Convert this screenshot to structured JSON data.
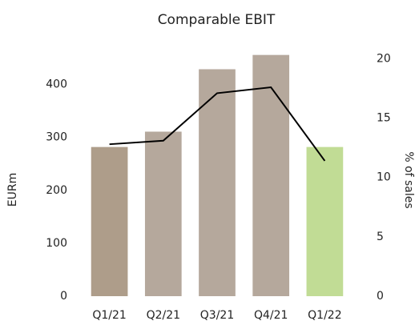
{
  "chart_data": {
    "type": "bar",
    "title": "Comparable EBIT",
    "categories": [
      "Q1/21",
      "Q2/21",
      "Q3/21",
      "Q4/21",
      "Q1/22"
    ],
    "series": [
      {
        "name": "EURm",
        "type": "bar",
        "colors": [
          "#ae9d8a",
          "#b5a89c",
          "#b5a89c",
          "#b5a89c",
          "#c1dc95"
        ],
        "values": [
          282,
          311,
          429,
          456,
          282
        ]
      },
      {
        "name": "% of sales",
        "type": "line",
        "axis": "y2",
        "color": "#000000",
        "values": [
          12.8,
          13.1,
          17.1,
          17.6,
          11.4
        ]
      }
    ],
    "ylabel": "EURm",
    "y2label": "% of sales",
    "ylim": [
      0,
      460
    ],
    "yticks": [
      0,
      100,
      200,
      300,
      400
    ],
    "y2lim": [
      0,
      20.5
    ],
    "y2ticks": [
      0,
      5,
      10,
      15,
      20
    ]
  }
}
